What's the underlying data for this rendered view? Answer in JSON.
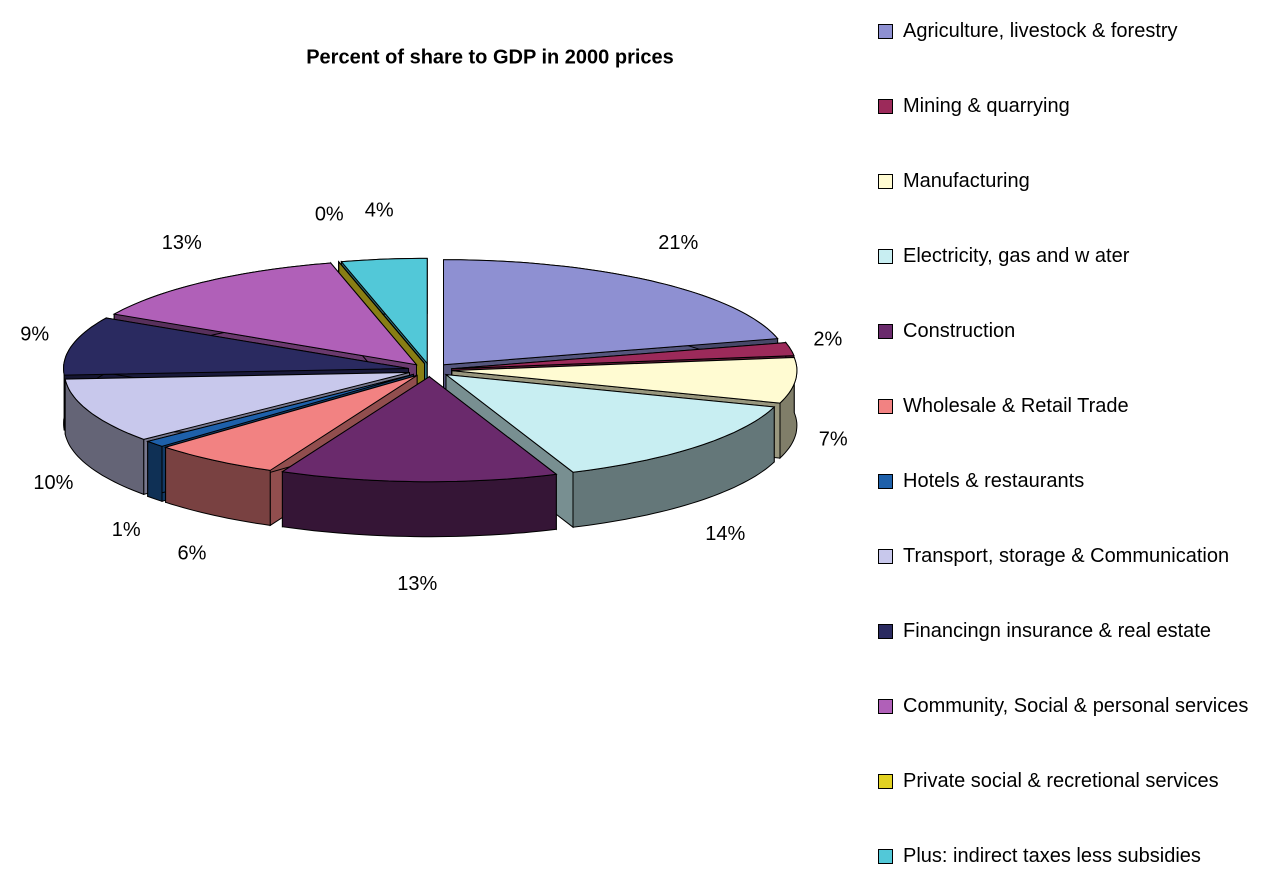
{
  "chart_data": {
    "type": "pie3d",
    "title": "Percent of share to GDP in 2000 prices",
    "categories": [
      "Agriculture, livestock & forestry",
      "Mining & quarrying",
      "Manufacturing",
      "Electricity, gas and w ater",
      "Construction",
      "Wholesale & Retail Trade",
      "Hotels & restaurants",
      "Transport, storage & Communication",
      "Financingn insurance & real estate",
      "Community, Social & personal services",
      "Private social & recretional services",
      "Plus: indirect taxes less subsidies"
    ],
    "values": [
      21,
      2,
      7,
      14,
      13,
      6,
      1,
      10,
      9,
      13,
      0,
      4
    ],
    "value_labels": [
      "21%",
      "2%",
      "7%",
      "14%",
      "13%",
      "6%",
      "1%",
      "10%",
      "9%",
      "13%",
      "0%",
      "4%"
    ],
    "colors": [
      "#8e90d2",
      "#9c2a5a",
      "#fffbd2",
      "#c8eef2",
      "#6a2a6c",
      "#f28282",
      "#1e60aa",
      "#c8c8ec",
      "#2a2a60",
      "#b060b8",
      "#e2d222",
      "#52c8d8"
    ],
    "legend": "right"
  }
}
